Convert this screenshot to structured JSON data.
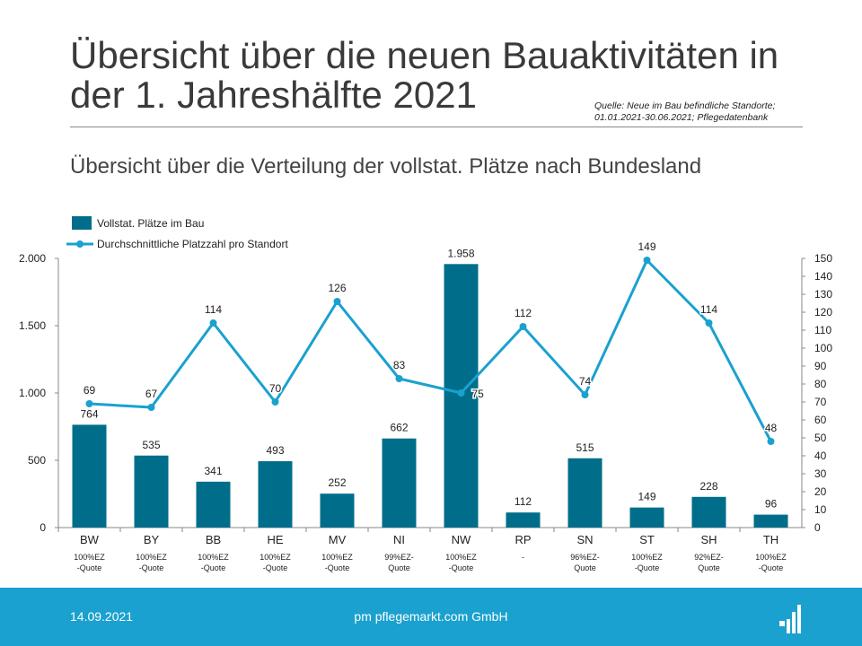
{
  "header": {
    "title_line1": "Übersicht über die neuen Bauaktivitäten in",
    "title_line2": "der 1. Jahreshälfte 2021",
    "source_line1": "Quelle: Neue im Bau befindliche Standorte;",
    "source_line2": "01.01.2021-30.06.2021; Pflegedatenbank",
    "subtitle": "Übersicht über die Verteilung der vollstat. Plätze nach Bundesland"
  },
  "chart_data": {
    "type": "bar",
    "categories": [
      "BW",
      "BY",
      "BB",
      "HE",
      "MV",
      "NI",
      "NW",
      "RP",
      "SN",
      "ST",
      "SH",
      "TH"
    ],
    "series": [
      {
        "name": "Vollstat. Plätze im Bau",
        "type": "bar",
        "axis": "left",
        "values": [
          764,
          535,
          341,
          493,
          252,
          662,
          1958,
          112,
          515,
          149,
          228,
          96
        ],
        "labels": [
          "764",
          "535",
          "341",
          "493",
          "252",
          "662",
          "1.958",
          "112",
          "515",
          "149",
          "228",
          "96"
        ]
      },
      {
        "name": "Durchschnittliche Platzzahl pro Standort",
        "type": "line",
        "axis": "right",
        "values": [
          69,
          67,
          114,
          70,
          126,
          83,
          75,
          112,
          74,
          149,
          114,
          48
        ]
      }
    ],
    "quotes": [
      [
        "100%EZ",
        "-Quote"
      ],
      [
        "100%EZ",
        "-Quote"
      ],
      [
        "100%EZ",
        "-Quote"
      ],
      [
        "100%EZ",
        "-Quote"
      ],
      [
        "100%EZ",
        "-Quote"
      ],
      [
        "99%EZ-",
        "Quote"
      ],
      [
        "100%EZ",
        "-Quote"
      ],
      [
        "-",
        ""
      ],
      [
        "96%EZ-",
        "Quote"
      ],
      [
        "100%EZ",
        "-Quote"
      ],
      [
        "92%EZ-",
        "Quote"
      ],
      [
        "100%EZ",
        "-Quote"
      ]
    ],
    "y_left": {
      "ylim": [
        0,
        2000
      ],
      "ticks": [
        0,
        500,
        1000,
        1500,
        2000
      ],
      "tick_labels": [
        "0",
        "500",
        "1.000",
        "1.500",
        "2.000"
      ]
    },
    "y_right": {
      "ylim": [
        0,
        150
      ],
      "ticks": [
        0,
        10,
        20,
        30,
        40,
        50,
        60,
        70,
        80,
        90,
        100,
        110,
        120,
        130,
        140,
        150
      ],
      "tick_labels": [
        "0",
        "10",
        "20",
        "30",
        "40",
        "50",
        "60",
        "70",
        "80",
        "90",
        "100",
        "110",
        "120",
        "130",
        "140",
        "150"
      ]
    },
    "legend_position": "top-left",
    "grid": false
  },
  "colors": {
    "bar": "#006e8a",
    "line": "#1aa1cf",
    "footer": "#1aa1cf"
  },
  "footer": {
    "date": "14.09.2021",
    "company": "pm pflegemarkt.com GmbH",
    "logo_icon": "pflegemarkt-logo-icon"
  }
}
